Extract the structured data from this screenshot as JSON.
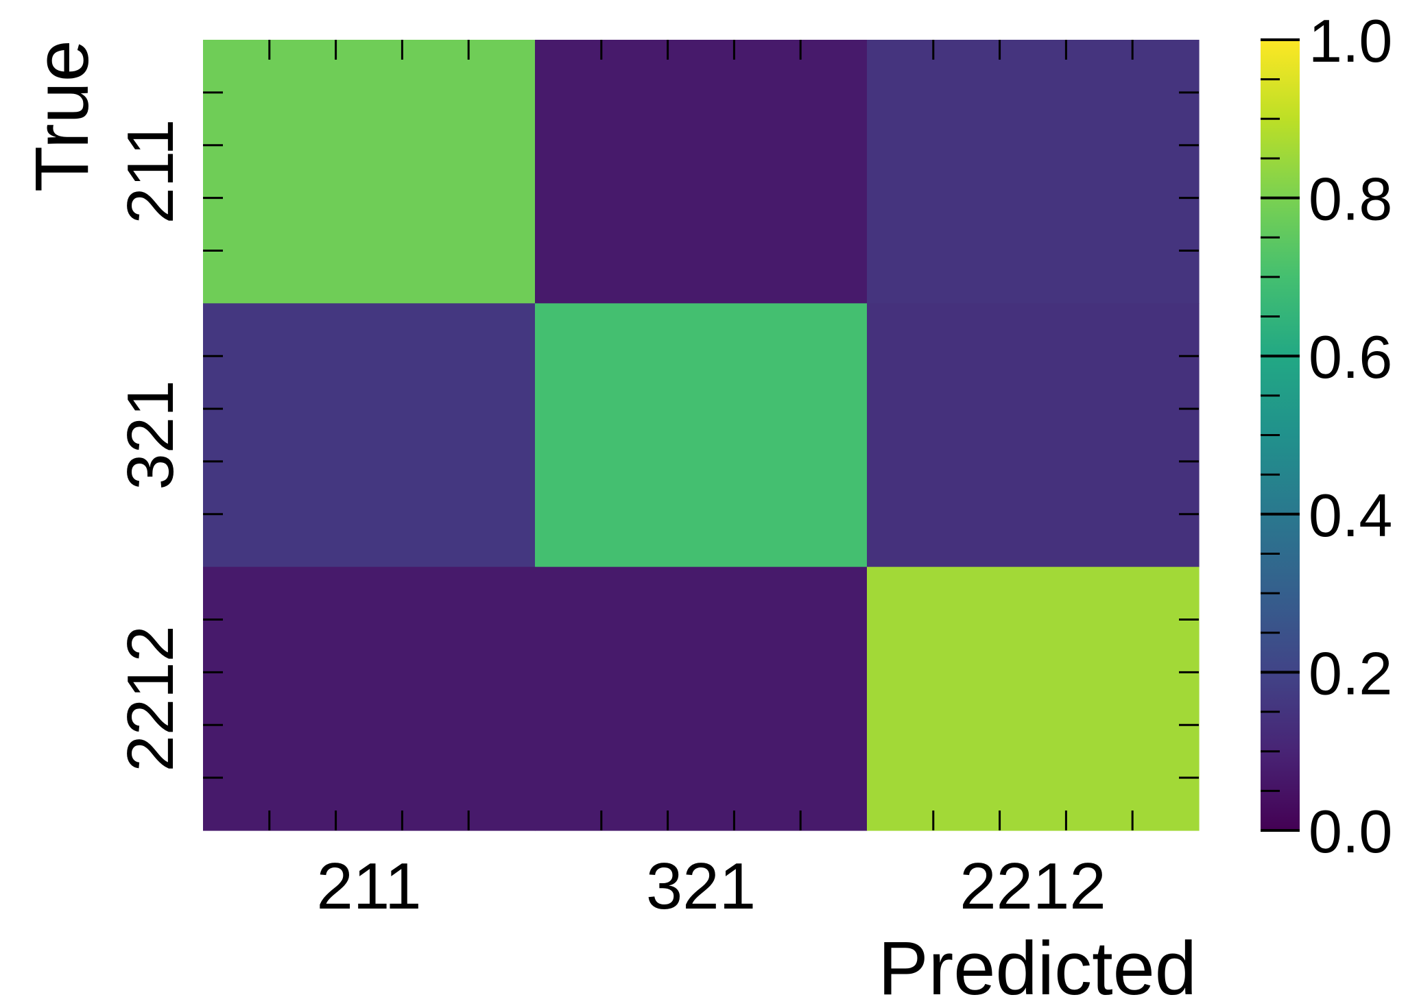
{
  "chart_data": {
    "type": "heatmap",
    "title": "",
    "xlabel": "Predicted",
    "ylabel": "True",
    "x_categories": [
      "211",
      "321",
      "2212"
    ],
    "y_categories": [
      "211",
      "321",
      "2212"
    ],
    "values": [
      [
        0.78,
        0.07,
        0.15
      ],
      [
        0.16,
        0.7,
        0.14
      ],
      [
        0.07,
        0.07,
        0.86
      ]
    ],
    "colorbar": {
      "colormap": "viridis",
      "range": [
        0.0,
        1.0
      ],
      "ticks": [
        "0.0",
        "0.2",
        "0.4",
        "0.6",
        "0.8",
        "1.0"
      ]
    },
    "grid": false
  }
}
